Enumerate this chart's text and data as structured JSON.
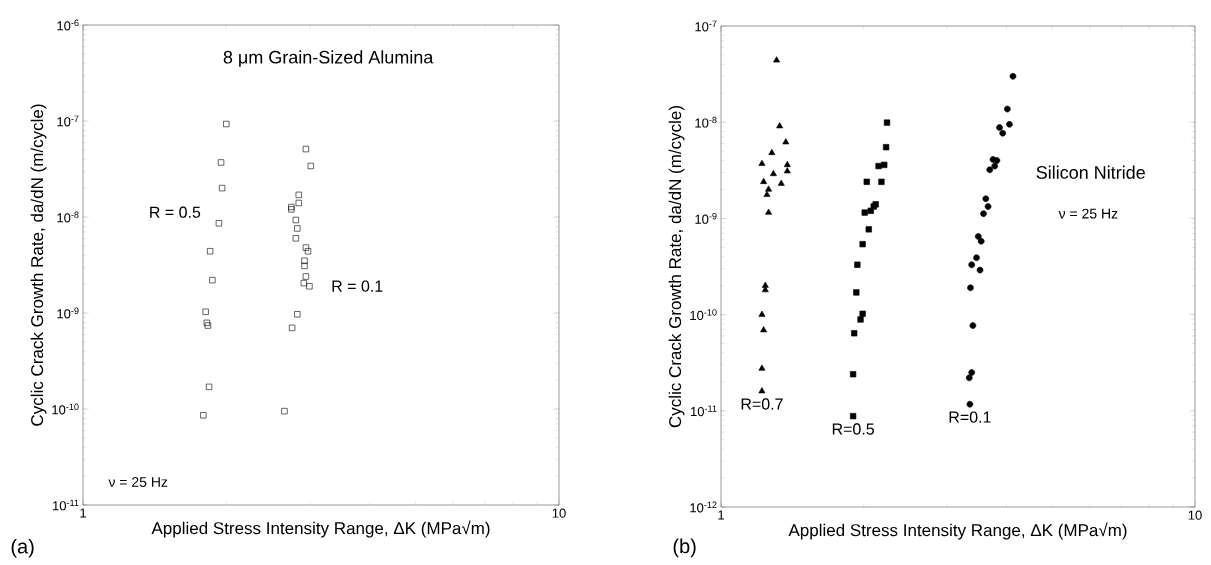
{
  "chart_data": [
    {
      "type": "scatter",
      "title": "8 μm Grain-Sized Alumina",
      "xlabel": "Applied Stress Intensity Range, ΔK (MPa√m)",
      "ylabel": "Cyclic Crack Growth Rate, da/dN (m/cycle)",
      "log": "xy",
      "xlim": [
        1,
        10
      ],
      "ylim": [
        1e-11,
        1e-06
      ],
      "xticks": [
        1,
        10
      ],
      "yticks": [
        {
          "value": 1e-11,
          "label": "10$^{-11}$"
        },
        {
          "value": 1e-10,
          "label": "10$^{-10}$"
        },
        {
          "value": 1e-09,
          "label": "10$^{-9}$"
        },
        {
          "value": 1e-08,
          "label": "10$^{-8}$"
        },
        {
          "value": 1e-07,
          "label": "10$^{-7}$"
        },
        {
          "value": 1e-06,
          "label": "10$^{-6}$"
        }
      ],
      "annotations": [
        "ν = 25 Hz",
        "(a)"
      ],
      "series": [
        {
          "name": "R = 0.5",
          "color": "#000000",
          "marker": "square",
          "x": [
            2.0,
            1.95,
            1.96,
            1.93,
            1.85,
            1.87,
            1.81,
            1.82,
            1.83,
            1.84,
            1.79
          ],
          "values": [
            9.3e-08,
            3.7e-08,
            2e-08,
            8.6e-09,
            4.4e-09,
            2.2e-09,
            1.03e-09,
            7.9e-10,
            7.4e-10,
            1.7e-10,
            8.6e-11
          ]
        },
        {
          "name": "R = 0.1",
          "color": "#000000",
          "marker": "square",
          "x": [
            2.94,
            3.01,
            2.84,
            2.84,
            2.74,
            2.74,
            2.8,
            2.82,
            2.8,
            2.94,
            2.97,
            2.92,
            2.92,
            2.94,
            2.91,
            2.99,
            2.82,
            2.75,
            2.65
          ],
          "values": [
            5.1e-08,
            3.4e-08,
            1.7e-08,
            1.4e-08,
            1.27e-08,
            1.2e-08,
            9.3e-09,
            7.6e-09,
            6e-09,
            4.8e-09,
            4.4e-09,
            3.5e-09,
            3.1e-09,
            2.4e-09,
            2.05e-09,
            1.9e-09,
            9.7e-10,
            7e-10,
            9.5e-11
          ]
        }
      ]
    },
    {
      "type": "scatter",
      "xlabel": "Applied Stress Intensity Range, ΔK (MPa√m)",
      "ylabel": "Cyclic Crack Growth Rate, da/dN (m/cycle)",
      "log": "xy",
      "xlim": [
        1,
        10
      ],
      "ylim": [
        1e-12,
        1e-07
      ],
      "xticks": [
        1,
        10
      ],
      "yticks": [
        {
          "value": 1e-12,
          "label": "10$^{-12}$"
        },
        {
          "value": 1e-11,
          "label": "10$^{-11}$"
        },
        {
          "value": 1e-10,
          "label": "10$^{-10}$"
        },
        {
          "value": 1e-09,
          "label": "10$^{-9}$"
        },
        {
          "value": 1e-08,
          "label": "10$^{-8}$"
        },
        {
          "value": 1e-07,
          "label": "10$^{-7}$"
        }
      ],
      "annotations": [
        "Silicon Nitride",
        "ν = 25 Hz",
        "(b)"
      ],
      "series": [
        {
          "name": "R=0.7",
          "color": "#000000",
          "marker": "triangle",
          "x": [
            1.31,
            1.33,
            1.37,
            1.28,
            1.22,
            1.38,
            1.38,
            1.29,
            1.23,
            1.34,
            1.26,
            1.25,
            1.26,
            1.24,
            1.24,
            1.22,
            1.23,
            1.22,
            1.22
          ],
          "values": [
            4.4e-08,
            9.1e-09,
            6.2e-09,
            4.8e-09,
            3.7e-09,
            3.6e-09,
            3.1e-09,
            2.9e-09,
            2.4e-09,
            2.3e-09,
            2e-09,
            1.76e-09,
            1.15e-09,
            2e-10,
            1.8e-10,
            1e-10,
            6.9e-11,
            2.75e-11,
            1.6e-11
          ]
        },
        {
          "name": "R=0.5",
          "color": "#000000",
          "marker": "square",
          "x": [
            2.24,
            2.23,
            2.21,
            2.15,
            2.18,
            2.03,
            2.12,
            2.1,
            2.07,
            2.01,
            2.05,
            1.99,
            1.94,
            1.93,
            1.99,
            1.97,
            1.91,
            1.9,
            1.9
          ],
          "values": [
            9.9e-09,
            5.5e-09,
            3.6e-09,
            3.5e-09,
            2.4e-09,
            2.4e-09,
            1.4e-09,
            1.33e-09,
            1.2e-09,
            1.15e-09,
            7.7e-10,
            5.4e-10,
            3.3e-10,
            1.7e-10,
            1.02e-10,
            8.9e-11,
            6.4e-11,
            2.4e-11,
            8.8e-12
          ]
        },
        {
          "name": "R=0.1",
          "color": "#000000",
          "marker": "circle",
          "x": [
            4.13,
            4.02,
            4.06,
            3.87,
            3.93,
            3.75,
            3.82,
            3.78,
            3.69,
            3.62,
            3.66,
            3.58,
            3.49,
            3.54,
            3.46,
            3.38,
            3.52,
            3.36,
            3.4,
            3.38,
            3.34,
            3.35
          ],
          "values": [
            3e-08,
            1.37e-08,
            9.5e-09,
            8.8e-09,
            7.7e-09,
            4.1e-09,
            4e-09,
            3.5e-09,
            3.2e-09,
            1.6e-09,
            1.33e-09,
            1.12e-09,
            6.5e-10,
            5.8e-10,
            3.9e-10,
            3.3e-10,
            2.9e-10,
            1.9e-10,
            7.7e-11,
            2.5e-11,
            2.2e-11,
            1.17e-11
          ]
        }
      ]
    }
  ]
}
